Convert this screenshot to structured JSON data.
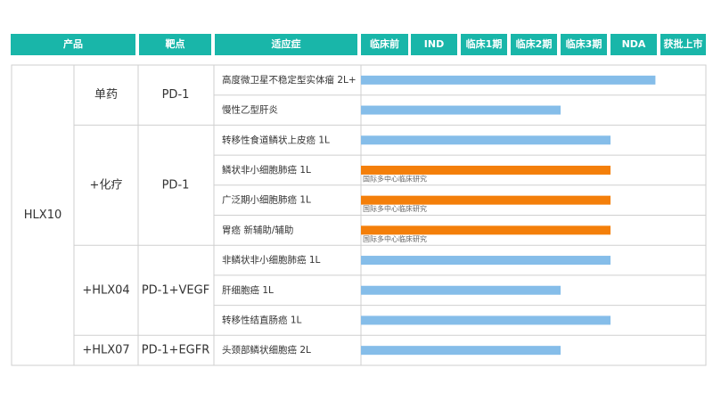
{
  "header": [
    "产品",
    "靶点",
    "适应症",
    "临床前",
    "IND",
    "临床1期",
    "临床2期",
    "临床3期",
    "NDA",
    "获批上市"
  ],
  "product": "HLX10",
  "stage_scale": [
    0,
    7
  ],
  "colors": {
    "standard": "#85bde9",
    "international": "#f47f0a"
  },
  "groups": [
    {
      "combo": "单药",
      "target": "PD-1",
      "rows": [
        {
          "indication": "高度微卫星不稳定型实体瘤 2L+",
          "progress": 5.9,
          "kind": "standard"
        },
        {
          "indication": "慢性乙型肝炎",
          "progress": 4,
          "kind": "standard"
        }
      ]
    },
    {
      "combo": "+化疗",
      "target": "PD-1",
      "rows": [
        {
          "indication": "转移性食道鳞状上皮癌 1L",
          "progress": 5,
          "kind": "standard"
        },
        {
          "indication": "鳞状非小细胞肺癌 1L",
          "progress": 5,
          "kind": "international",
          "note": "国际多中心临床研究"
        },
        {
          "indication": "广泛期小细胞肺癌 1L",
          "progress": 5,
          "kind": "international",
          "note": "国际多中心临床研究"
        },
        {
          "indication": "胃癌 新辅助/辅助",
          "progress": 5,
          "kind": "international",
          "note": "国际多中心临床研究"
        }
      ]
    },
    {
      "combo": "+HLX04",
      "target": "PD-1+VEGF",
      "rows": [
        {
          "indication": "非鳞状非小细胞肺癌 1L",
          "progress": 5,
          "kind": "standard"
        },
        {
          "indication": "肝细胞癌 1L",
          "progress": 4,
          "kind": "standard"
        },
        {
          "indication": "转移性结直肠癌 1L",
          "progress": 5,
          "kind": "standard"
        }
      ]
    },
    {
      "combo": "+HLX07",
      "target": "PD-1+EGFR",
      "rows": [
        {
          "indication": "头颈部鳞状细胞癌 2L",
          "progress": 4,
          "kind": "standard"
        }
      ]
    }
  ]
}
